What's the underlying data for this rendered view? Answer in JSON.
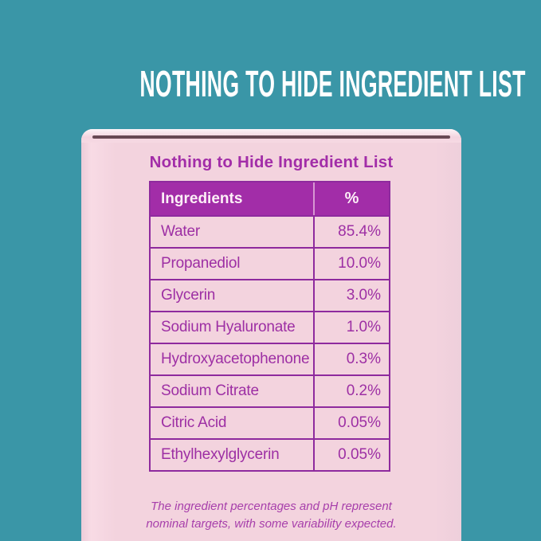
{
  "heading": "NOTHING TO HIDE INGREDIENT LIST",
  "box": {
    "title": "Nothing to Hide Ingredient List",
    "footnote": [
      "The ingredient percentages and pH represent",
      "nominal targets, with some variability expected."
    ]
  },
  "chart_data": {
    "type": "table",
    "title": "Nothing to Hide Ingredient List",
    "columns": [
      "Ingredients",
      "%"
    ],
    "rows": [
      [
        "Water",
        "85.4%"
      ],
      [
        "Propanediol",
        "10.0%"
      ],
      [
        "Glycerin",
        "3.0%"
      ],
      [
        "Sodium Hyaluronate",
        "1.0%"
      ],
      [
        "Hydroxyacetophenone",
        "0.3%"
      ],
      [
        "Sodium Citrate",
        "0.2%"
      ],
      [
        "Citric Acid",
        "0.05%"
      ],
      [
        "Ethylhexylglycerin",
        "0.05%"
      ]
    ],
    "footnote": "The ingredient percentages and pH represent nominal targets, with some variability expected.",
    "layout_hints": {
      "header_style": "solid purple band, white text",
      "value_alignment": "right",
      "grid": "full purple borders"
    }
  },
  "colors": {
    "teal_background": "#3a96a7",
    "box_pink": "#f3d3de",
    "accent_purple": "#a22da8",
    "border_purple": "#8e2a9e",
    "text_purple": "#9d2fa4",
    "heading_white": "#ffffff",
    "lid_seam_dark": "#543640"
  }
}
